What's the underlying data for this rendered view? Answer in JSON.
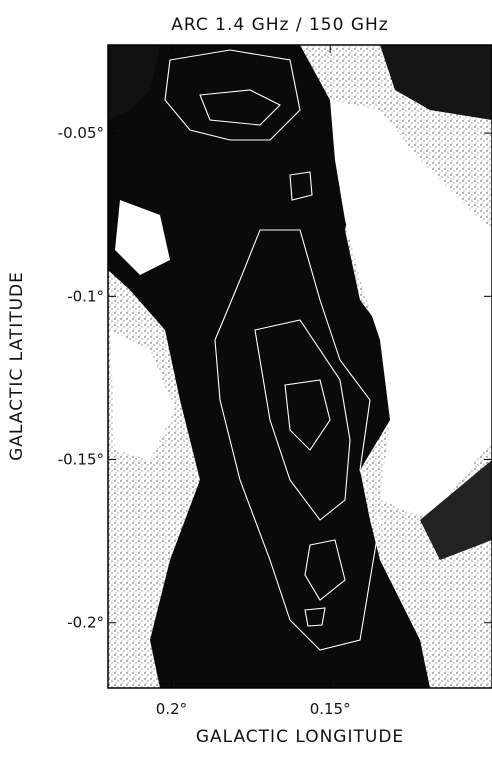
{
  "chart_data": {
    "type": "image",
    "title": "ARC 1.4 GHz / 150 GHz",
    "x_label": "GALACTIC LONGITUDE",
    "y_label": "GALACTIC LATITUDE",
    "xlim": [
      0.22,
      0.099
    ],
    "ylim": [
      -0.22,
      -0.023
    ],
    "xticks": [
      {
        "value": 0.2,
        "label": "0.2°"
      },
      {
        "value": 0.15,
        "label": "0.15°"
      }
    ],
    "yticks": [
      {
        "value": -0.05,
        "label": "-0.05°"
      },
      {
        "value": -0.1,
        "label": "-0.1°"
      },
      {
        "value": -0.15,
        "label": "-0.15°"
      },
      {
        "value": -0.2,
        "label": "-0.2°"
      }
    ]
  }
}
